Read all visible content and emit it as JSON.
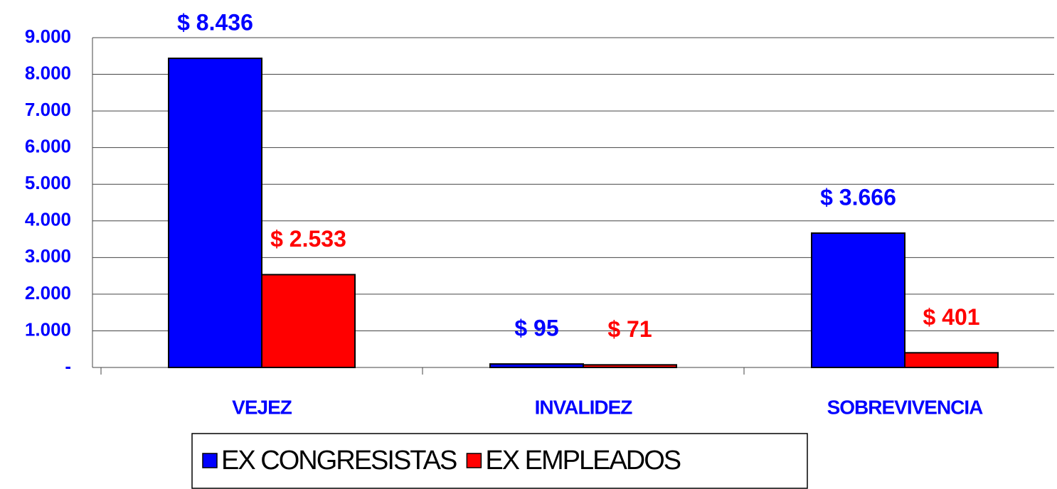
{
  "chart_data": {
    "type": "bar",
    "categories": [
      "VEJEZ",
      "INVALIDEZ",
      "SOBREVIVENCIA"
    ],
    "series": [
      {
        "name": "EX CONGRESISTAS",
        "color": "#0000ff",
        "values": [
          8436,
          95,
          3666
        ],
        "value_labels": [
          "$ 8.436",
          "$ 95",
          "$ 3.666"
        ]
      },
      {
        "name": "EX EMPLEADOS",
        "color": "#ff0000",
        "values": [
          2533,
          71,
          401
        ],
        "value_labels": [
          "$ 2.533",
          "$ 71",
          "$ 401"
        ]
      }
    ],
    "ylim": [
      0,
      9000
    ],
    "yticks": [
      {
        "value": 0,
        "label": "-"
      },
      {
        "value": 1000,
        "label": "1.000"
      },
      {
        "value": 2000,
        "label": "2.000"
      },
      {
        "value": 3000,
        "label": "3.000"
      },
      {
        "value": 4000,
        "label": "4.000"
      },
      {
        "value": 5000,
        "label": "5.000"
      },
      {
        "value": 6000,
        "label": "6.000"
      },
      {
        "value": 7000,
        "label": "7.000"
      },
      {
        "value": 8000,
        "label": "8.000"
      },
      {
        "value": 9000,
        "label": "9.000"
      }
    ],
    "grid": true,
    "legend": "bottom"
  }
}
